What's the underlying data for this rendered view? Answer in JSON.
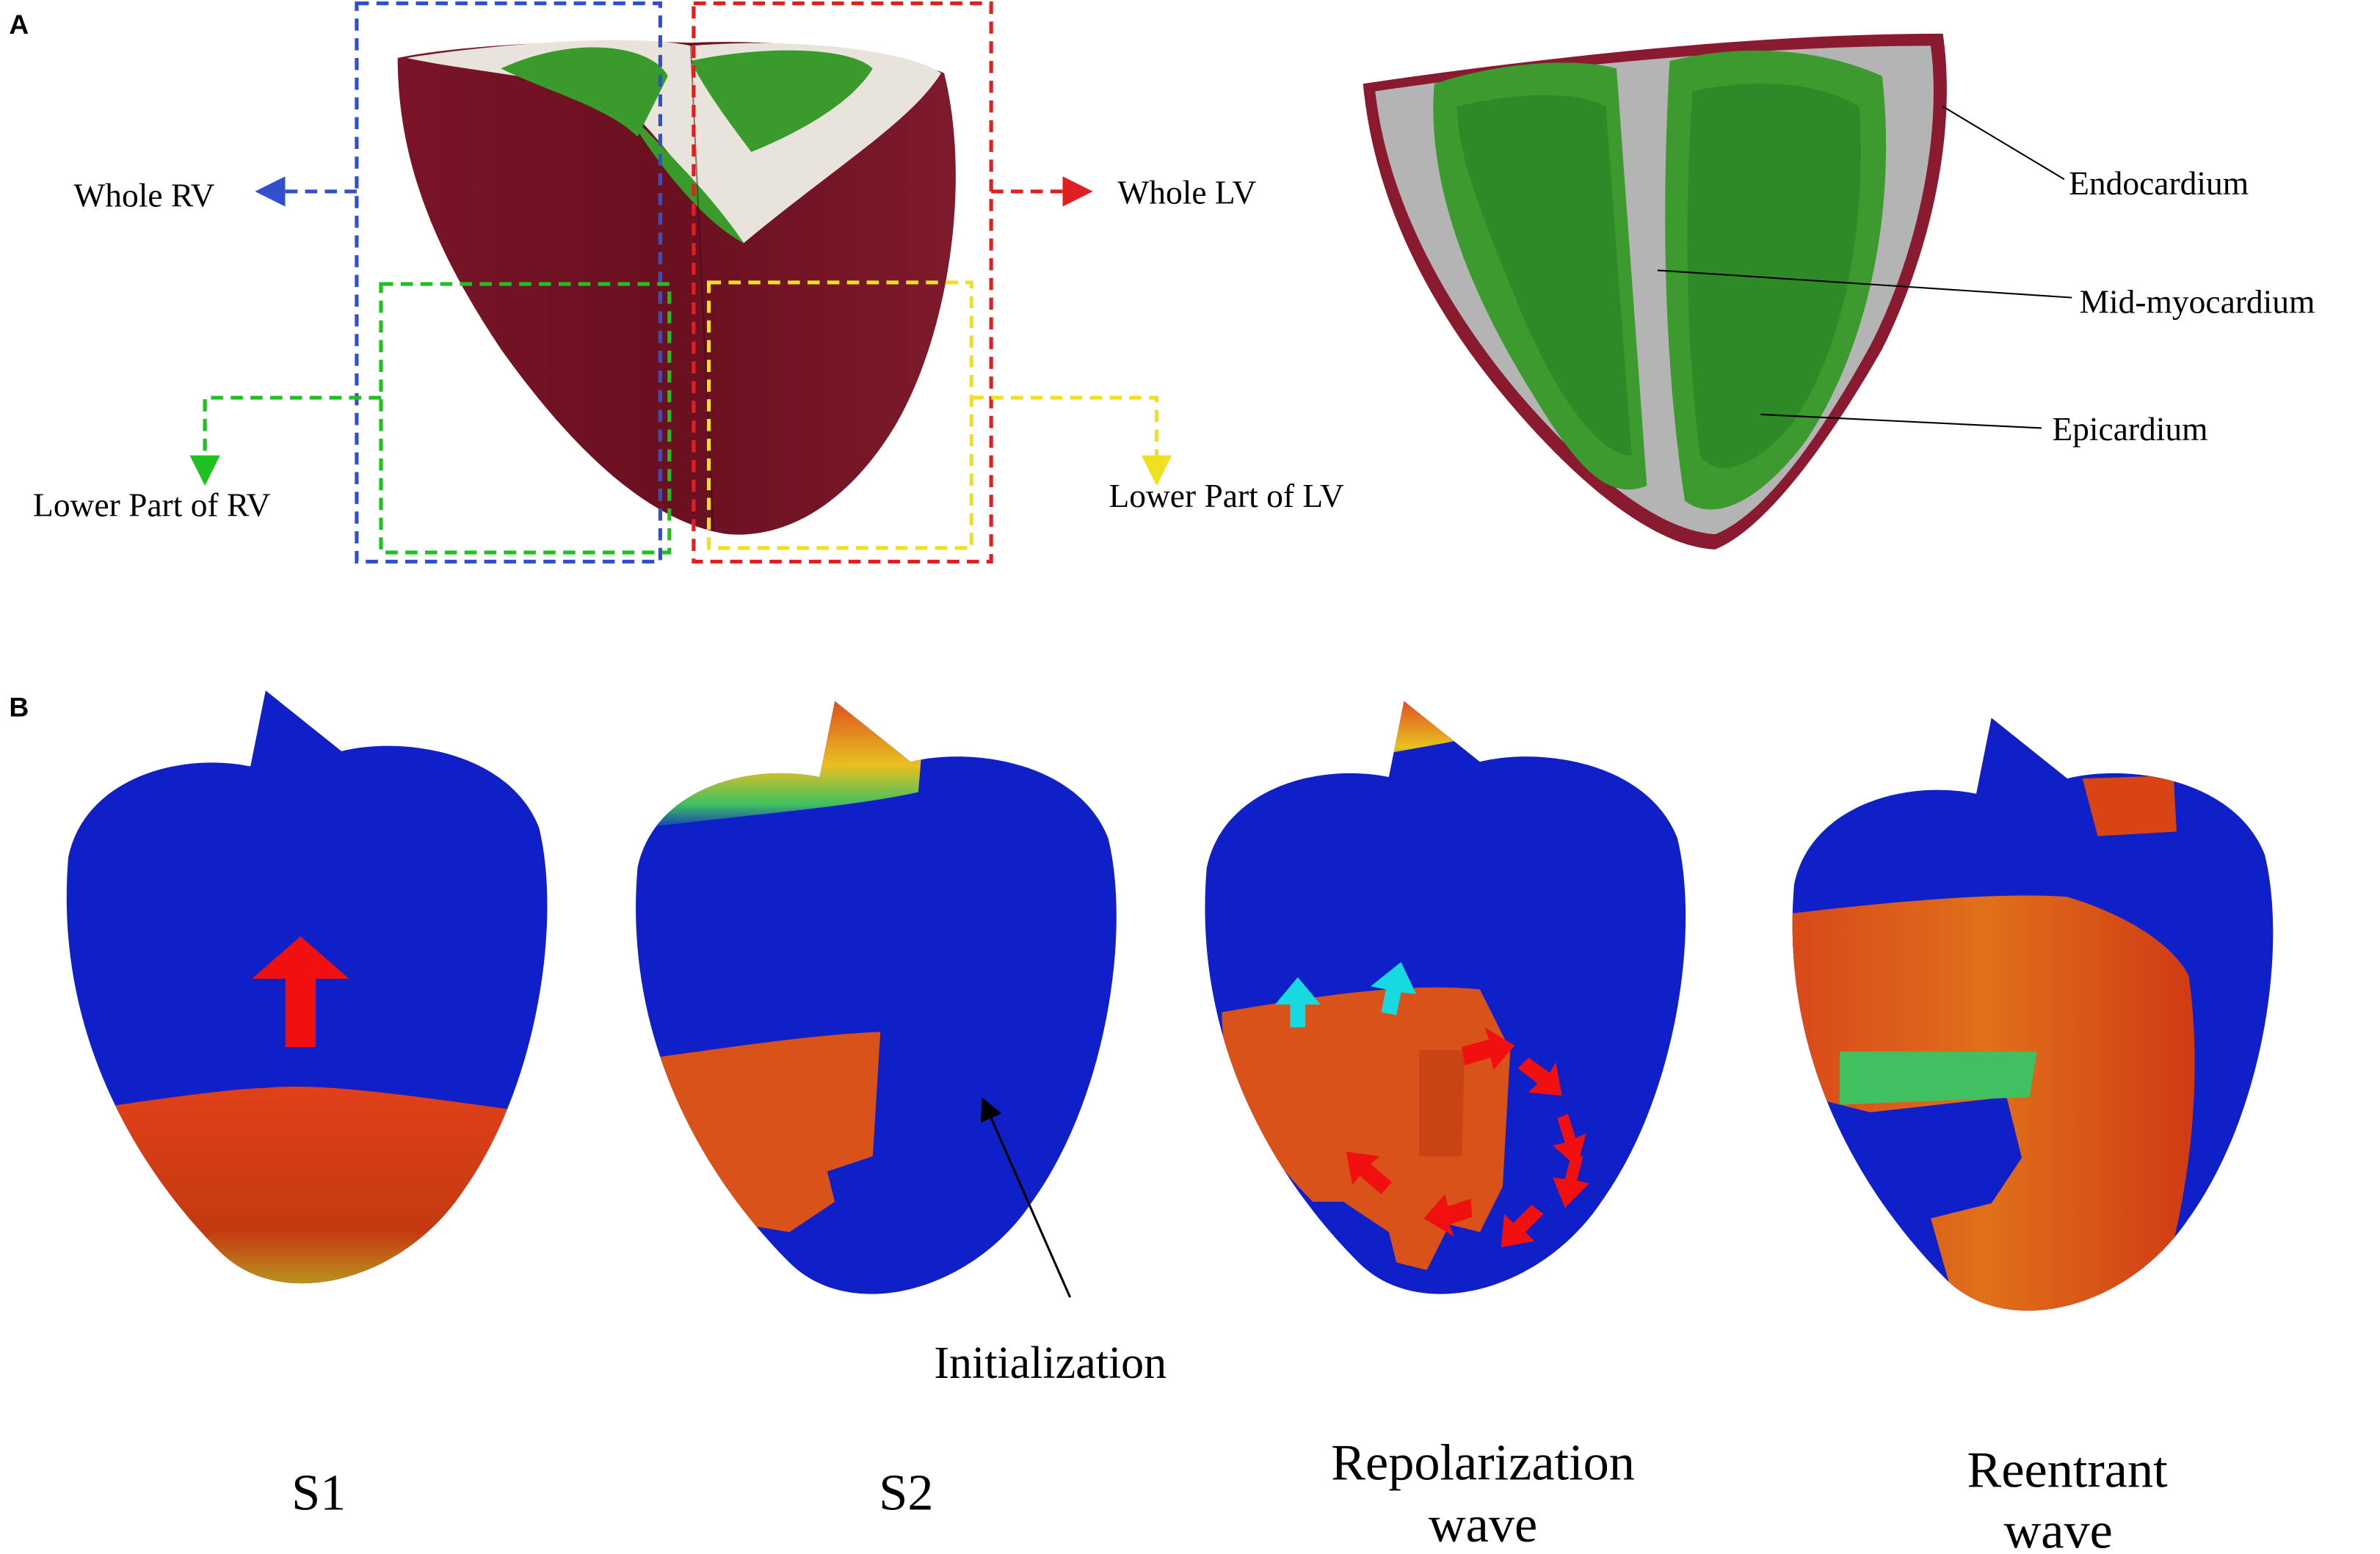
{
  "panel_a": {
    "label": "A",
    "annotations": [
      "Whole RV",
      "Whole LV",
      "Lower Part of RV",
      "Lower Part of  LV"
    ],
    "layers": [
      "Endocardium",
      "Mid-myocardium",
      "Epicardium"
    ]
  },
  "panel_b": {
    "label": "B",
    "pointer": "Initialization",
    "stages": [
      [
        "S1"
      ],
      [
        "S2"
      ],
      [
        "Repolarization",
        "wave"
      ],
      [
        "Reentrant",
        "wave"
      ]
    ]
  }
}
